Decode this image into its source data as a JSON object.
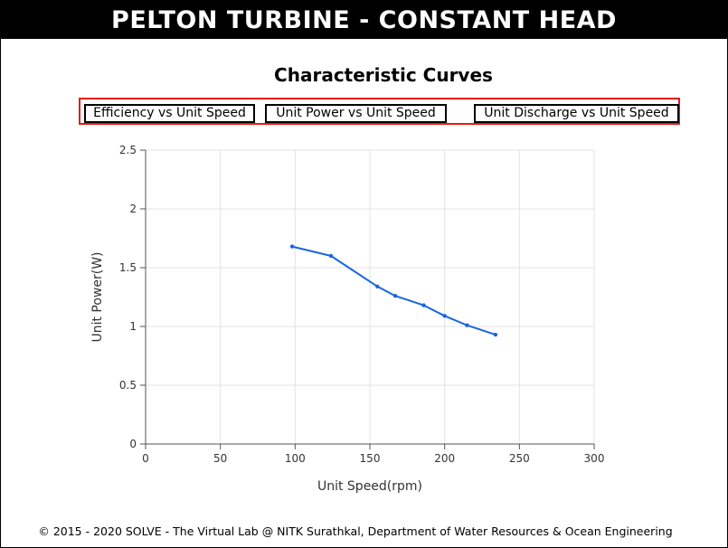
{
  "header": {
    "title": "PELTON TURBINE - CONSTANT HEAD"
  },
  "page": {
    "subtitle": "Characteristic Curves"
  },
  "tabs": [
    {
      "label": "Efficiency vs Unit Speed"
    },
    {
      "label": "Unit Power vs Unit Speed"
    },
    {
      "label": "Unit Discharge vs Unit Speed"
    }
  ],
  "chart_data": {
    "type": "line",
    "xlabel": "Unit Speed(rpm)",
    "ylabel": "Unit Power(W)",
    "xlim": [
      0,
      300
    ],
    "ylim": [
      0,
      2.5
    ],
    "xticks": [
      0,
      50,
      100,
      150,
      200,
      250,
      300
    ],
    "yticks": [
      0,
      0.5,
      1,
      1.5,
      2,
      2.5
    ],
    "xtick_labels": [
      "0",
      "50",
      "100",
      "150",
      "200",
      "250",
      "300"
    ],
    "ytick_labels": [
      "0",
      "0.5",
      "1",
      "1.5",
      "2",
      "2.5"
    ],
    "grid": true,
    "line_color": "#1a66e0",
    "series": [
      {
        "x": [
          98,
          124,
          155,
          167,
          186,
          200,
          215,
          234
        ],
        "y": [
          1.68,
          1.6,
          1.34,
          1.26,
          1.18,
          1.09,
          1.01,
          0.93
        ]
      }
    ]
  },
  "footer": {
    "text": "© 2015 - 2020 SOLVE - The Virtual Lab @ NITK Surathkal, Department of Water Resources & Ocean Engineering"
  }
}
